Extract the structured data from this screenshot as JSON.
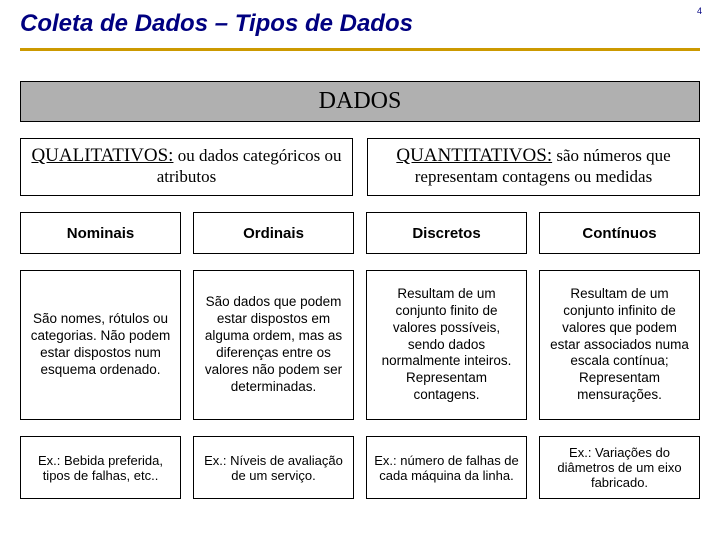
{
  "page": {
    "title": "Coleta de Dados – Tipos de Dados",
    "pageNumber": "4",
    "colors": {
      "titleColor": "#000080",
      "underline": "#cc9900",
      "dadosBg": "#b0b0b0",
      "border": "#000000",
      "background": "#ffffff"
    }
  },
  "dados": {
    "header": "DADOS",
    "qualitativos": {
      "leadWord": "QUALITATIVOS:",
      "rest": " ou dados categóricos ou atributos"
    },
    "quantitativos": {
      "leadWord": "QUANTITATIVOS:",
      "rest": " são números que representam contagens ou medidas"
    }
  },
  "columns": {
    "c1": {
      "name": "Nominais",
      "desc": "São nomes, rótulos  ou categorias. Não podem estar dispostos num esquema ordenado.",
      "example": "Ex.: Bebida preferida, tipos de falhas, etc.."
    },
    "c2": {
      "name": "Ordinais",
      "desc": "São dados que podem estar dispostos em alguma ordem, mas as diferenças entre os valores não podem ser determinadas.",
      "example": "Ex.: Níveis de avaliação de um serviço."
    },
    "c3": {
      "name": "Discretos",
      "desc": "Resultam de um conjunto finito de valores possíveis, sendo dados normalmente inteiros. Representam contagens.",
      "example": "Ex.: número de falhas de cada máquina da linha."
    },
    "c4": {
      "name": "Contínuos",
      "desc": "Resultam de um conjunto infinito de valores que podem estar associados numa escala contínua; Representam mensurações.",
      "example": "Ex.: Variações do diâmetros de um eixo fabricado."
    }
  }
}
